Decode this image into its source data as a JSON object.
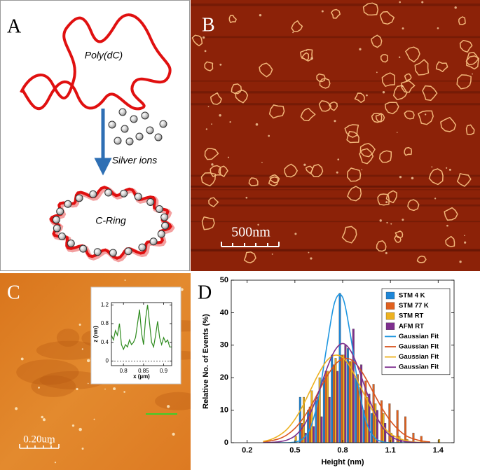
{
  "panels": {
    "a": {
      "label": "A",
      "polymer": "Poly(dC)",
      "ions": "Silver ions",
      "ring": "C-Ring"
    },
    "b": {
      "label": "B",
      "scale_bar": "500nm"
    },
    "c": {
      "label": "C",
      "scale_bar": "0.20um"
    },
    "d": {
      "label": "D"
    }
  },
  "chart_data": [
    {
      "type": "line",
      "xlabel": "x (µm)",
      "ylabel": "z (nm)",
      "xlim": [
        0.77,
        0.92
      ],
      "ylim": [
        -0.1,
        1.25
      ],
      "xticks": [
        0.8,
        0.85,
        0.9
      ],
      "yticks": [
        0,
        0.4,
        0.8,
        1.2
      ],
      "series": [
        {
          "color": "#2e8b1e",
          "x": [
            0.77,
            0.775,
            0.78,
            0.785,
            0.79,
            0.795,
            0.8,
            0.805,
            0.81,
            0.815,
            0.82,
            0.825,
            0.83,
            0.835,
            0.84,
            0.845,
            0.85,
            0.855,
            0.86,
            0.865,
            0.87,
            0.875,
            0.88,
            0.885,
            0.89,
            0.895,
            0.9,
            0.905,
            0.91,
            0.915,
            0.92
          ],
          "values": [
            0.55,
            0.45,
            0.65,
            0.55,
            0.8,
            0.35,
            0.25,
            0.35,
            0.3,
            0.45,
            0.35,
            0.4,
            0.5,
            0.8,
            1.1,
            0.6,
            0.35,
            0.9,
            1.2,
            0.8,
            0.4,
            0.3,
            0.55,
            0.85,
            0.5,
            0.35,
            0.5,
            0.4,
            0.45,
            0.3,
            0.3
          ]
        }
      ]
    },
    {
      "type": "bar",
      "xlabel": "Height (nm)",
      "ylabel": "Relative No. of Events (%)",
      "xlim": [
        0.1,
        1.5
      ],
      "ylim": [
        0,
        50
      ],
      "xticks": [
        0.2,
        0.5,
        0.8,
        1.1,
        1.4
      ],
      "yticks": [
        0,
        10,
        20,
        30,
        40,
        50
      ],
      "x": [
        0.5,
        0.55,
        0.6,
        0.65,
        0.7,
        0.75,
        0.8,
        0.85,
        0.9,
        0.95,
        1.0,
        1.05,
        1.1,
        1.15,
        1.2,
        1.25,
        1.3,
        1.4
      ],
      "series": [
        {
          "name": "STM 4 K",
          "color": "#1f86d6",
          "values": [
            0,
            14,
            10,
            13,
            20,
            27,
            46,
            29,
            20,
            10,
            9,
            0,
            0,
            0,
            0,
            0,
            0,
            0
          ]
        },
        {
          "name": "STM 77 K",
          "color": "#e0601e",
          "values": [
            0,
            6,
            11,
            14,
            22,
            24,
            27,
            25,
            21,
            19,
            18,
            13,
            12,
            10,
            8,
            3,
            2,
            0
          ]
        },
        {
          "name": "STM RT",
          "color": "#edb120",
          "values": [
            2,
            14,
            16,
            20,
            22,
            26,
            27,
            25,
            17,
            14,
            12,
            9,
            3,
            2,
            1,
            0,
            0,
            1
          ]
        },
        {
          "name": "AFM RT",
          "color": "#7e2f8e",
          "values": [
            0,
            3,
            5,
            8,
            14,
            22,
            30,
            35,
            24,
            15,
            10,
            6,
            2,
            1,
            0,
            0,
            0,
            0
          ]
        },
        {
          "name": "Gaussian Fit",
          "type": "line",
          "color": "#1f96e0",
          "x": [
            0.3,
            0.35,
            0.4,
            0.45,
            0.5,
            0.55,
            0.6,
            0.65,
            0.7,
            0.75,
            0.8,
            0.85,
            0.9,
            0.95,
            1.0,
            1.05,
            1.1,
            1.15,
            1.2,
            1.25,
            1.3,
            1.35
          ],
          "values": [
            0,
            0,
            0,
            0,
            0.2,
            1.2,
            4.9,
            14.3,
            29.5,
            43.2,
            44.7,
            32.8,
            17,
            6.2,
            1.6,
            0.3,
            0,
            0,
            0,
            0,
            0,
            0
          ]
        },
        {
          "name": "Gaussian Fit",
          "type": "line",
          "color": "#d9531e",
          "x": [
            0.3,
            0.35,
            0.4,
            0.45,
            0.5,
            0.55,
            0.6,
            0.65,
            0.7,
            0.75,
            0.8,
            0.85,
            0.9,
            0.95,
            1.0,
            1.05,
            1.1,
            1.15,
            1.2,
            1.25,
            1.3,
            1.35
          ],
          "values": [
            0.2,
            0.6,
            1.2,
            2.4,
            4.4,
            7.4,
            11.2,
            15.8,
            20.3,
            23.9,
            25.8,
            25.6,
            23.3,
            19.4,
            14.8,
            10.4,
            6.7,
            4,
            2.1,
            1.1,
            0.5,
            0.2
          ]
        },
        {
          "name": "Gaussian Fit",
          "type": "line",
          "color": "#edb120",
          "x": [
            0.3,
            0.35,
            0.4,
            0.45,
            0.5,
            0.55,
            0.6,
            0.65,
            0.7,
            0.75,
            0.8,
            0.85,
            0.9,
            0.95,
            1.0,
            1.05,
            1.1,
            1.15,
            1.2,
            1.25,
            1.3,
            1.35
          ],
          "values": [
            0.4,
            1,
            2.2,
            4.1,
            7.2,
            11.4,
            16.4,
            21.3,
            25.2,
            26.9,
            26.2,
            23.1,
            18.4,
            13.4,
            8.8,
            5.2,
            2.8,
            1.4,
            0.6,
            0.2,
            0.1,
            0
          ]
        },
        {
          "name": "Gaussian Fit",
          "type": "line",
          "color": "#7e2f8e",
          "x": [
            0.3,
            0.35,
            0.4,
            0.45,
            0.5,
            0.55,
            0.6,
            0.65,
            0.7,
            0.75,
            0.8,
            0.85,
            0.9,
            0.95,
            1.0,
            1.05,
            1.1,
            1.15,
            1.2,
            1.25,
            1.3,
            1.35
          ],
          "values": [
            0,
            0.1,
            0.3,
            0.8,
            2.1,
            4.8,
            9.4,
            15.7,
            22.7,
            28.3,
            30.5,
            28.3,
            22.7,
            15.7,
            9.4,
            4.8,
            2.1,
            0.8,
            0.3,
            0.1,
            0,
            0
          ]
        }
      ]
    }
  ]
}
